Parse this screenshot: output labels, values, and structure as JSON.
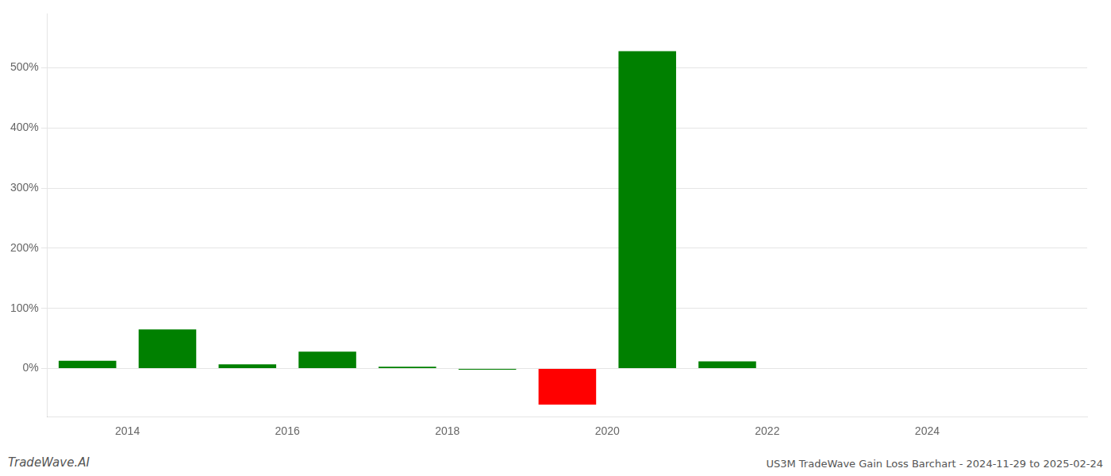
{
  "chart_data": {
    "type": "bar",
    "title": "US3M TradeWave Gain Loss Barchart - 2024-11-29 to 2025-02-24",
    "annotations": [
      "TradeWave.AI"
    ],
    "x": [
      2013.5,
      2014.5,
      2015.5,
      2016.5,
      2017.5,
      2018.5,
      2019.5,
      2020.5,
      2021.5,
      2022.5,
      2023.5,
      2024.5
    ],
    "values": [
      0.13,
      0.65,
      0.07,
      0.28,
      0.03,
      -0.02,
      -0.6,
      5.28,
      0.12,
      0.0,
      0.0,
      0.0
    ],
    "colors": [
      "#008000",
      "#008000",
      "#008000",
      "#008000",
      "#008000",
      "#008000",
      "#ff0000",
      "#008000",
      "#008000",
      "#008000",
      "#008000",
      "#008000"
    ],
    "xlim": [
      2013.0,
      2026.0
    ],
    "ylim": [
      -0.8,
      5.9
    ],
    "xticks": [
      2014,
      2016,
      2018,
      2020,
      2022,
      2024
    ],
    "yticks": [
      {
        "value": 0.0,
        "label": "0%"
      },
      {
        "value": 1.0,
        "label": "100%"
      },
      {
        "value": 2.0,
        "label": "200%"
      },
      {
        "value": 3.0,
        "label": "300%"
      },
      {
        "value": 4.0,
        "label": "400%"
      },
      {
        "value": 5.0,
        "label": "500%"
      }
    ],
    "grid": "y"
  }
}
